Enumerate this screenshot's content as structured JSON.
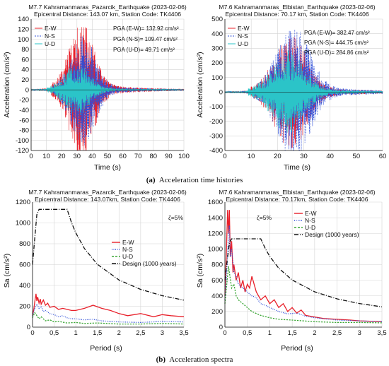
{
  "captions": {
    "a": "Acceleration time histories",
    "a_letter": "(a)",
    "b": "Acceleration spectra",
    "b_letter": "(b)"
  },
  "chart_data": [
    {
      "id": "th1",
      "type": "line",
      "title": "M7.7 Kahramanmaras_Pazarcik_Earthquake (2023-02-06)",
      "subtitle": "Epicentral Distance: 143.07 km, Station Code: TK4406",
      "xlabel": "Time (s)",
      "ylabel": "Acceleration (cm/s²)",
      "xlim": [
        0,
        100
      ],
      "ylim": [
        -120,
        140
      ],
      "xticks": [
        0,
        10,
        20,
        30,
        40,
        50,
        60,
        70,
        80,
        90,
        100
      ],
      "yticks": [
        -120,
        -100,
        -80,
        -60,
        -40,
        -20,
        0,
        20,
        40,
        60,
        80,
        100,
        120,
        140
      ],
      "grid": true,
      "legend_position": "top-left",
      "series": [
        {
          "name": "E-W",
          "color": "#e8202a",
          "dash": "solid",
          "peak": 132.92,
          "peak_time": 33
        },
        {
          "name": "N-S",
          "color": "#2f4fd8",
          "dash": "dashed",
          "peak": 109.47,
          "peak_time": 34
        },
        {
          "name": "U-D",
          "color": "#2bc4c8",
          "dash": "solid",
          "peak": 49.71,
          "peak_time": 30
        }
      ],
      "annotations": [
        "PGA (E-W)= 132.92 cm/s²",
        "PGA (N-S)= 109.47 cm/s²",
        "PGA (U-D)= 49.71 cm/s²"
      ]
    },
    {
      "id": "th2",
      "type": "line",
      "title": "M7.6 Kahramanmaras_Elbistan_Earthquake (2023-02-06)",
      "subtitle": "Epicentral Distance: 70.17 km, Station Code: TK4406",
      "xlabel": "Time (s)",
      "ylabel": "Acceleration (cm/s²)",
      "xlim": [
        0,
        60
      ],
      "ylim": [
        -400,
        500
      ],
      "xticks": [
        0,
        10,
        20,
        30,
        40,
        50,
        60
      ],
      "yticks": [
        -400,
        -300,
        -200,
        -100,
        0,
        100,
        200,
        300,
        400,
        500
      ],
      "grid": true,
      "legend_position": "top-left",
      "series": [
        {
          "name": "E-W",
          "color": "#e8202a",
          "dash": "solid",
          "peak": 382.47,
          "peak_time": 25
        },
        {
          "name": "N-S",
          "color": "#2f4fd8",
          "dash": "dashed",
          "peak": 444.75,
          "peak_time": 26
        },
        {
          "name": "U-D",
          "color": "#2bc4c8",
          "dash": "solid",
          "peak": 284.86,
          "peak_time": 24
        }
      ],
      "annotations": [
        "PGA (E-W)= 382.47 cm/s²",
        "PGA (N-S)= 444.75 cm/s²",
        "PGA (U-D)= 284.86 cm/s²"
      ]
    },
    {
      "id": "sp1",
      "type": "line",
      "title": "M7.7 Kahramanmaras_Pazarcik_Earthquake (2023-02-06)",
      "subtitle": "Epicentral Distance: 143.07km, Station Code: TK4406",
      "xlabel": "Period (s)",
      "ylabel": "Sa (cm/s²)",
      "xlim": [
        0,
        3.5
      ],
      "ylim": [
        0,
        1200
      ],
      "xticks": [
        0,
        0.5,
        1,
        1.5,
        2,
        2.5,
        3,
        3.5
      ],
      "xticklabels": [
        "0",
        "0,5",
        "1",
        "1,5",
        "2",
        "2,5",
        "3",
        "3,5"
      ],
      "yticks": [
        0,
        200,
        400,
        600,
        800,
        1000,
        1200
      ],
      "grid": true,
      "legend_position": "right",
      "annotations": [
        "ζ=5%"
      ],
      "series": [
        {
          "name": "E-W",
          "color": "#e8202a",
          "dash": "solid",
          "x": [
            0,
            0.03,
            0.05,
            0.08,
            0.1,
            0.12,
            0.15,
            0.18,
            0.2,
            0.25,
            0.3,
            0.35,
            0.4,
            0.5,
            0.6,
            0.7,
            0.8,
            0.9,
            1.0,
            1.2,
            1.4,
            1.6,
            1.8,
            2.0,
            2.2,
            2.5,
            2.8,
            3.0,
            3.2,
            3.5
          ],
          "y": [
            110,
            170,
            240,
            320,
            250,
            290,
            230,
            270,
            220,
            260,
            210,
            230,
            190,
            200,
            170,
            180,
            170,
            160,
            160,
            180,
            210,
            180,
            160,
            130,
            110,
            130,
            100,
            120,
            110,
            100
          ]
        },
        {
          "name": "N-S",
          "color": "#2f4fd8",
          "dash": "dotted",
          "x": [
            0,
            0.05,
            0.1,
            0.15,
            0.2,
            0.25,
            0.3,
            0.4,
            0.5,
            0.6,
            0.7,
            0.8,
            0.9,
            1.0,
            1.2,
            1.4,
            1.6,
            1.8,
            2.0,
            2.5,
            3.0,
            3.5
          ],
          "y": [
            110,
            180,
            220,
            180,
            200,
            150,
            160,
            130,
            120,
            100,
            110,
            90,
            80,
            80,
            70,
            75,
            60,
            55,
            50,
            45,
            55,
            50
          ]
        },
        {
          "name": "U-D",
          "color": "#3aa635",
          "dash": "dashed",
          "x": [
            0,
            0.05,
            0.1,
            0.15,
            0.2,
            0.3,
            0.4,
            0.5,
            0.6,
            0.8,
            1.0,
            1.2,
            1.5,
            2.0,
            2.5,
            3.0,
            3.5
          ],
          "y": [
            90,
            140,
            110,
            80,
            100,
            60,
            70,
            50,
            55,
            40,
            45,
            35,
            40,
            30,
            30,
            35,
            30
          ]
        },
        {
          "name": "Design (1000 years)",
          "color": "#111111",
          "dash": "dashdot",
          "x": [
            0,
            0.05,
            0.1,
            0.15,
            0.2,
            0.8,
            0.9,
            1.0,
            1.2,
            1.5,
            2.0,
            2.5,
            3.0,
            3.5
          ],
          "y": [
            600,
            850,
            1080,
            1130,
            1130,
            1130,
            1005,
            905,
            754,
            603,
            452,
            362,
            302,
            259
          ]
        }
      ]
    },
    {
      "id": "sp2",
      "type": "line",
      "title": "M7.6 Kahramanmaras_Elbistan_Earthquake (2023-02-06)",
      "subtitle": "Epicentral Distance: 70.17km, Station Code: TK4406",
      "xlabel": "Period (s)",
      "ylabel": "Sa (cm/s²)",
      "xlim": [
        0,
        3.5
      ],
      "ylim": [
        0,
        1600
      ],
      "xticks": [
        0,
        0.5,
        1,
        1.5,
        2,
        2.5,
        3,
        3.5
      ],
      "xticklabels": [
        "0",
        "0,5",
        "1",
        "1,5",
        "2",
        "2,5",
        "3",
        "3,5"
      ],
      "yticks": [
        0,
        200,
        400,
        600,
        800,
        1000,
        1200,
        1400,
        1600
      ],
      "grid": true,
      "legend_position": "top-right",
      "annotations": [
        "ζ=5%"
      ],
      "series": [
        {
          "name": "E-W",
          "color": "#e8202a",
          "dash": "solid",
          "x": [
            0,
            0.03,
            0.06,
            0.08,
            0.1,
            0.12,
            0.15,
            0.18,
            0.2,
            0.25,
            0.3,
            0.35,
            0.4,
            0.45,
            0.5,
            0.55,
            0.6,
            0.7,
            0.8,
            0.9,
            1.0,
            1.1,
            1.2,
            1.3,
            1.4,
            1.5,
            1.6,
            1.7,
            1.8,
            2.0,
            2.2,
            2.5,
            2.8,
            3.0,
            3.5
          ],
          "y": [
            400,
            900,
            1500,
            1200,
            1500,
            900,
            1100,
            700,
            800,
            600,
            700,
            500,
            600,
            450,
            550,
            500,
            650,
            450,
            350,
            400,
            300,
            350,
            250,
            300,
            200,
            250,
            180,
            220,
            150,
            130,
            110,
            100,
            90,
            80,
            70
          ]
        },
        {
          "name": "N-S",
          "color": "#2f4fd8",
          "dash": "dotted",
          "x": [
            0,
            0.05,
            0.08,
            0.1,
            0.12,
            0.15,
            0.2,
            0.25,
            0.3,
            0.4,
            0.5,
            0.6,
            0.7,
            0.8,
            0.9,
            1.0,
            1.2,
            1.4,
            1.6,
            1.8,
            2.0,
            2.5,
            3.0,
            3.5
          ],
          "y": [
            350,
            800,
            1200,
            1300,
            900,
            1000,
            700,
            650,
            550,
            500,
            450,
            400,
            380,
            300,
            280,
            250,
            200,
            170,
            180,
            140,
            120,
            90,
            80,
            70
          ]
        },
        {
          "name": "U-D",
          "color": "#3aa635",
          "dash": "dashed",
          "x": [
            0,
            0.05,
            0.08,
            0.1,
            0.15,
            0.2,
            0.25,
            0.3,
            0.4,
            0.5,
            0.6,
            0.8,
            1.0,
            1.2,
            1.5,
            2.0,
            2.5,
            3.0,
            3.5
          ],
          "y": [
            300,
            600,
            780,
            700,
            500,
            550,
            400,
            350,
            300,
            250,
            200,
            150,
            120,
            100,
            90,
            70,
            60,
            60,
            55
          ]
        },
        {
          "name": "Design (1000 years)",
          "color": "#111111",
          "dash": "dashdot",
          "x": [
            0,
            0.05,
            0.1,
            0.15,
            0.2,
            0.8,
            0.9,
            1.0,
            1.2,
            1.5,
            2.0,
            2.5,
            3.0,
            3.5
          ],
          "y": [
            600,
            850,
            1080,
            1130,
            1130,
            1130,
            1005,
            905,
            754,
            603,
            452,
            362,
            302,
            259
          ]
        }
      ]
    }
  ]
}
